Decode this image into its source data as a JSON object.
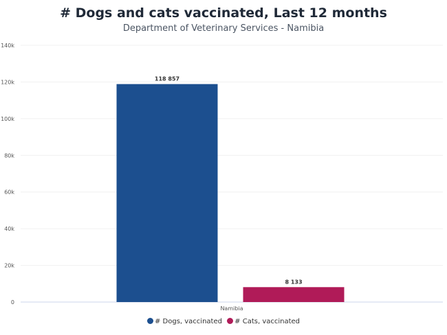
{
  "header": {
    "title": "# Dogs and cats vaccinated, Last 12 months",
    "subtitle": "Department of Veterinary Services - Namibia"
  },
  "chart_data": {
    "type": "bar",
    "title": "# Dogs and cats vaccinated, Last 12 months",
    "subtitle": "Department of Veterinary Services - Namibia",
    "categories": [
      "Namibia"
    ],
    "series": [
      {
        "name": "# Dogs, vaccinated",
        "values": [
          118857
        ],
        "label": "118 857",
        "color": "#1c4f8f"
      },
      {
        "name": "# Cats, vaccinated",
        "values": [
          8133
        ],
        "label": "8 133",
        "color": "#b01b58"
      }
    ],
    "ylim": [
      0,
      140000
    ],
    "yticks": [
      0,
      20000,
      40000,
      60000,
      80000,
      100000,
      120000,
      140000
    ],
    "ytick_labels": [
      "0",
      "20k",
      "40k",
      "60k",
      "80k",
      "100k",
      "120k",
      "140k"
    ],
    "xlabel": "",
    "ylabel": "",
    "grid": true,
    "legend_position": "bottom-center"
  }
}
